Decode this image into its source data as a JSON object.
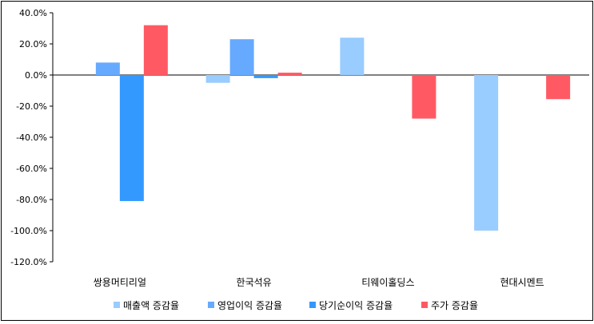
{
  "chart_data": {
    "type": "bar",
    "title": "",
    "xlabel": "",
    "ylabel": "",
    "ylim": [
      -120,
      40
    ],
    "yticks": [
      {
        "v": 40,
        "label": "40.0%"
      },
      {
        "v": 20,
        "label": "20.0%"
      },
      {
        "v": 0,
        "label": "0.0%"
      },
      {
        "v": -20,
        "label": "-20.0%"
      },
      {
        "v": -40,
        "label": "-40.0%"
      },
      {
        "v": -60,
        "label": "-60.0%"
      },
      {
        "v": -80,
        "label": "-80.0%"
      },
      {
        "v": -100,
        "label": "-100.0%"
      },
      {
        "v": -120,
        "label": "-120.0%"
      }
    ],
    "grid": false,
    "legend": "bottom",
    "categories": [
      "쌍용머티리얼",
      "한국석유",
      "티웨이홀딩스",
      "현대시멘트"
    ],
    "series": [
      {
        "name": "매출액 증감율",
        "color": "#99CCFF",
        "values": [
          null,
          -5.0,
          24.0,
          -100.0
        ]
      },
      {
        "name": "영업이익 증감율",
        "color": "#66AAFF",
        "values": [
          8.0,
          23.0,
          null,
          null
        ]
      },
      {
        "name": "당기순이익 증감율",
        "color": "#3399FF",
        "values": [
          -81.0,
          -2.0,
          null,
          null
        ]
      },
      {
        "name": "주가 증감율",
        "color": "#FF5A64",
        "values": [
          32.0,
          1.5,
          -28.0,
          -15.5
        ]
      }
    ]
  }
}
